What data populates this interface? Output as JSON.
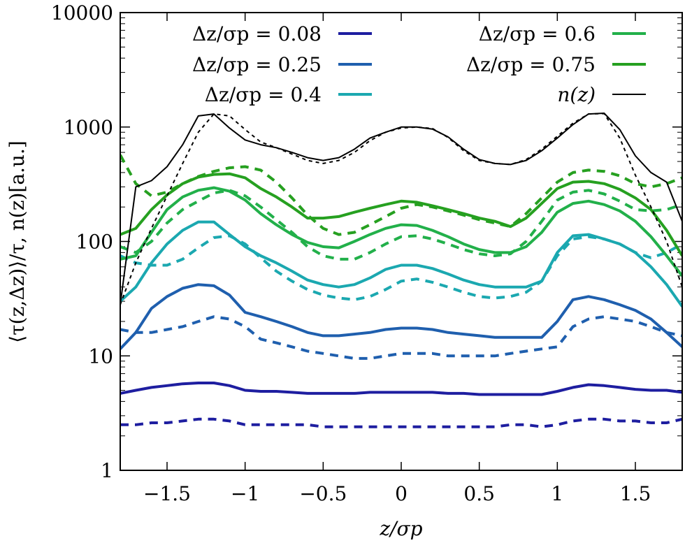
{
  "chart_data": {
    "type": "line",
    "xlabel": "z/σp",
    "ylabel": "⟨τ(z,Δz)⟩/τ,  n(z)[a.u.]",
    "xlim": [
      -1.8,
      1.8
    ],
    "ylim": [
      1,
      10000
    ],
    "yscale": "log",
    "xticks": [
      -1.5,
      -1,
      -0.5,
      0,
      0.5,
      1,
      1.5
    ],
    "xtick_labels": [
      "−1.5",
      "−1",
      "−0.5",
      "0",
      "0.5",
      "1",
      "1.5"
    ],
    "yticks": [
      1,
      10,
      100,
      1000,
      10000
    ],
    "ytick_labels": [
      "1",
      "10",
      "100",
      "1000",
      "10000"
    ],
    "legend_position": "top",
    "x": [
      -1.8,
      -1.7,
      -1.6,
      -1.5,
      -1.4,
      -1.3,
      -1.2,
      -1.1,
      -1.0,
      -0.9,
      -0.8,
      -0.7,
      -0.6,
      -0.5,
      -0.4,
      -0.3,
      -0.2,
      -0.1,
      0.0,
      0.1,
      0.2,
      0.3,
      0.4,
      0.5,
      0.6,
      0.7,
      0.8,
      0.9,
      1.0,
      1.1,
      1.2,
      1.3,
      1.4,
      1.5,
      1.6,
      1.7,
      1.8
    ],
    "series": [
      {
        "name": "Δz/σp = 0.08",
        "color": "#1e1ea0",
        "solid": [
          4.7,
          5.0,
          5.3,
          5.5,
          5.7,
          5.8,
          5.8,
          5.5,
          5.0,
          4.9,
          4.9,
          4.8,
          4.7,
          4.7,
          4.7,
          4.7,
          4.8,
          4.8,
          4.8,
          4.8,
          4.8,
          4.7,
          4.7,
          4.6,
          4.6,
          4.6,
          4.6,
          4.6,
          4.9,
          5.3,
          5.6,
          5.5,
          5.3,
          5.1,
          5.0,
          5.0,
          4.8
        ],
        "dashed": [
          2.5,
          2.5,
          2.6,
          2.6,
          2.7,
          2.8,
          2.8,
          2.7,
          2.5,
          2.5,
          2.5,
          2.5,
          2.5,
          2.4,
          2.4,
          2.4,
          2.4,
          2.4,
          2.4,
          2.4,
          2.4,
          2.4,
          2.4,
          2.4,
          2.4,
          2.5,
          2.5,
          2.4,
          2.5,
          2.7,
          2.8,
          2.8,
          2.7,
          2.7,
          2.6,
          2.6,
          2.8
        ]
      },
      {
        "name": "Δz/σp = 0.25",
        "color": "#1f5fae",
        "solid": [
          11.5,
          16,
          26,
          33,
          39,
          42,
          41,
          34,
          24,
          22,
          20,
          18,
          16,
          15,
          15,
          15.5,
          16,
          17,
          17.5,
          17.5,
          17,
          16,
          15.5,
          15,
          14.5,
          14.5,
          14.5,
          14.5,
          20,
          31,
          33,
          31,
          28,
          25,
          21,
          16,
          12
        ],
        "dashed": [
          17,
          16,
          16,
          17,
          18,
          20,
          22,
          21,
          18,
          14,
          13,
          12,
          11,
          10.5,
          10,
          9.5,
          9.5,
          10,
          10.5,
          10.5,
          10.5,
          10,
          10,
          10,
          10,
          10.5,
          11,
          11.5,
          12,
          18,
          21,
          22,
          21,
          20,
          18,
          16,
          15
        ]
      },
      {
        "name": "Δz/σp = 0.4",
        "color": "#1ba8b0",
        "solid": [
          30,
          40,
          65,
          95,
          125,
          148,
          148,
          115,
          90,
          75,
          65,
          55,
          46,
          42,
          40,
          42,
          48,
          57,
          62,
          62,
          58,
          52,
          46,
          42,
          40,
          40,
          40,
          45,
          80,
          112,
          115,
          105,
          95,
          80,
          60,
          42,
          27
        ],
        "dashed": [
          75,
          65,
          62,
          62,
          70,
          88,
          108,
          112,
          95,
          72,
          55,
          45,
          38,
          34,
          32,
          31,
          33,
          38,
          45,
          47,
          44,
          40,
          36,
          33,
          32,
          33,
          36,
          45,
          75,
          105,
          110,
          105,
          95,
          80,
          72,
          80,
          95
        ]
      },
      {
        "name": "Δz/σp = 0.6",
        "color": "#22b04a",
        "solid": [
          70,
          75,
          120,
          190,
          245,
          280,
          295,
          275,
          230,
          175,
          140,
          115,
          98,
          90,
          88,
          100,
          115,
          130,
          140,
          138,
          125,
          110,
          95,
          85,
          80,
          80,
          90,
          120,
          180,
          215,
          225,
          210,
          185,
          150,
          110,
          75,
          50
        ],
        "dashed": [
          90,
          80,
          100,
          145,
          190,
          225,
          265,
          280,
          250,
          200,
          155,
          120,
          90,
          75,
          70,
          70,
          80,
          95,
          110,
          112,
          105,
          95,
          85,
          78,
          75,
          78,
          100,
          150,
          230,
          270,
          280,
          260,
          225,
          190,
          185,
          190,
          210
        ]
      },
      {
        "name": "Δz/σp = 0.75",
        "color": "#26a020",
        "solid": [
          115,
          130,
          190,
          255,
          320,
          365,
          385,
          390,
          360,
          290,
          245,
          200,
          160,
          160,
          165,
          180,
          195,
          210,
          225,
          220,
          205,
          190,
          175,
          160,
          150,
          135,
          160,
          215,
          290,
          330,
          335,
          320,
          285,
          240,
          190,
          125,
          75
        ],
        "dashed": [
          570,
          320,
          250,
          270,
          320,
          370,
          410,
          440,
          450,
          420,
          330,
          240,
          170,
          130,
          115,
          120,
          140,
          165,
          195,
          210,
          200,
          185,
          170,
          155,
          145,
          135,
          175,
          240,
          330,
          400,
          420,
          410,
          375,
          320,
          300,
          320,
          360
        ]
      },
      {
        "name": "n(z)",
        "color": "#000000",
        "solid": [
          28,
          300,
          340,
          450,
          700,
          1250,
          1300,
          980,
          770,
          700,
          660,
          600,
          540,
          510,
          540,
          640,
          800,
          900,
          1000,
          1000,
          960,
          820,
          640,
          520,
          480,
          470,
          510,
          620,
          800,
          1050,
          1300,
          1320,
          950,
          560,
          400,
          330,
          150
        ],
        "dashed": [
          28,
          65,
          130,
          250,
          480,
          900,
          1300,
          1250,
          950,
          740,
          660,
          580,
          510,
          480,
          510,
          600,
          760,
          900,
          980,
          1000,
          970,
          810,
          620,
          510,
          480,
          470,
          520,
          640,
          830,
          1080,
          1300,
          1310,
          800,
          380,
          200,
          100,
          40
        ]
      }
    ]
  }
}
